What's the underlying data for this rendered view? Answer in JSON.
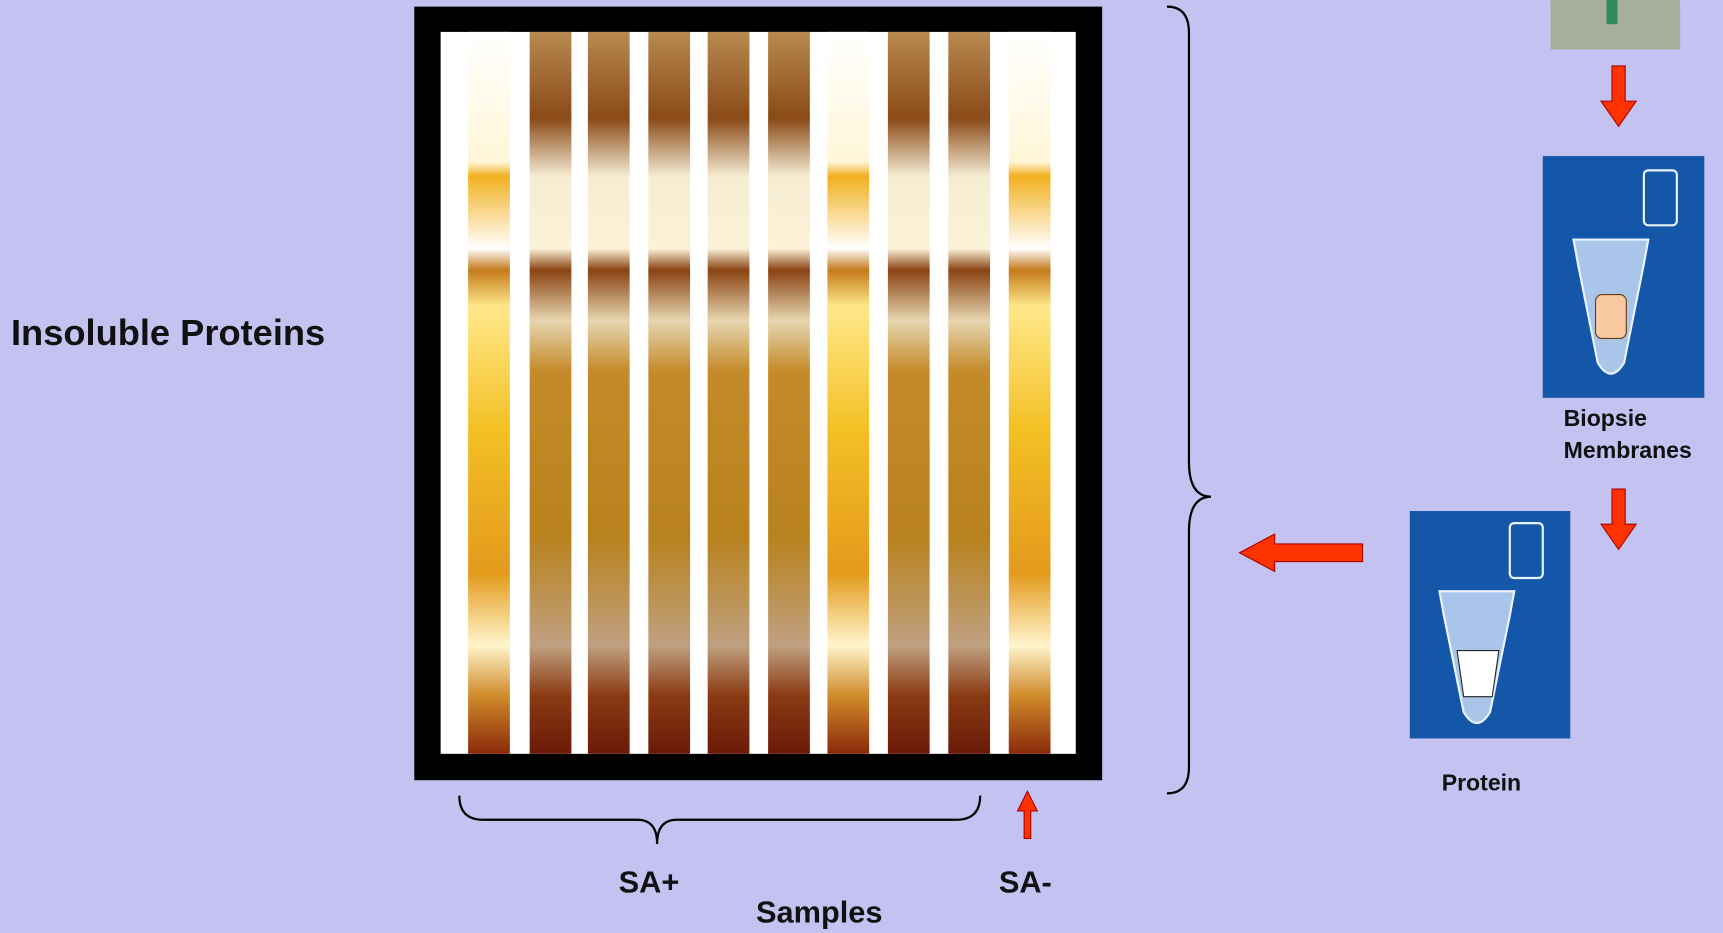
{
  "left_label": "Insoluble Proteins",
  "steps": {
    "biopsie": [
      "Biopsie",
      "Membranes"
    ],
    "protein": "Protein"
  },
  "groups": {
    "positive": "SA+",
    "negative": "SA-",
    "axis": "Samples"
  }
}
